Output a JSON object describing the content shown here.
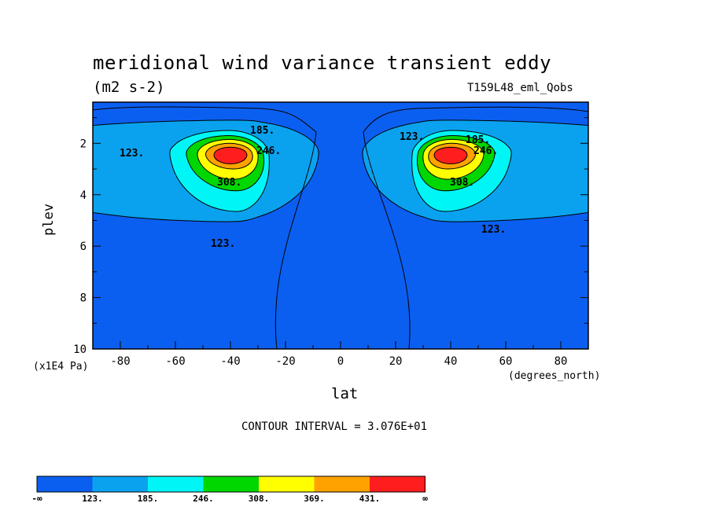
{
  "chart_data": {
    "type": "heatmap",
    "subtype": "filled-contour",
    "title": "meridional wind variance transient eddy",
    "units": "(m2 s-2)",
    "run_label": "T159L48_eml_Qobs",
    "xlabel": "lat",
    "ylabel": "plev",
    "x_units": "(degrees_north)",
    "y_units": "(x1E4 Pa)",
    "xlim": [
      -90,
      90
    ],
    "ylim": [
      10,
      0.4
    ],
    "x_ticks": [
      -80,
      -60,
      -40,
      -20,
      0,
      20,
      40,
      60,
      80
    ],
    "x_tick_labels": [
      "-80",
      "-60",
      "-40",
      "-20",
      "0",
      "20",
      "40",
      "60",
      "80"
    ],
    "y_ticks": [
      2,
      4,
      6,
      8,
      10
    ],
    "y_tick_labels": [
      "2",
      "4",
      "6",
      "8",
      "10"
    ],
    "contour_interval_text": "CONTOUR INTERVAL = 3.076E+01",
    "contour_interval": 30.76,
    "levels": [
      123,
      185,
      246,
      308,
      369,
      431
    ],
    "colorbar": {
      "labels": [
        "-∞",
        "123.",
        "185.",
        "246.",
        "308.",
        "369.",
        "431.",
        "∞"
      ],
      "colors": [
        "#0b5ff0",
        "#0aa2ef",
        "#00f6f6",
        "#00d600",
        "#ffff00",
        "#ffa200",
        "#ff1e1e"
      ]
    },
    "contour_labels": [
      "123.",
      "185.",
      "246.",
      "308."
    ],
    "features": [
      {
        "name": "southern maximum",
        "center": [
          -40,
          2.5
        ],
        "peak_approx": 420
      },
      {
        "name": "northern maximum",
        "center": [
          40,
          2.5
        ],
        "peak_approx": 420
      }
    ]
  }
}
